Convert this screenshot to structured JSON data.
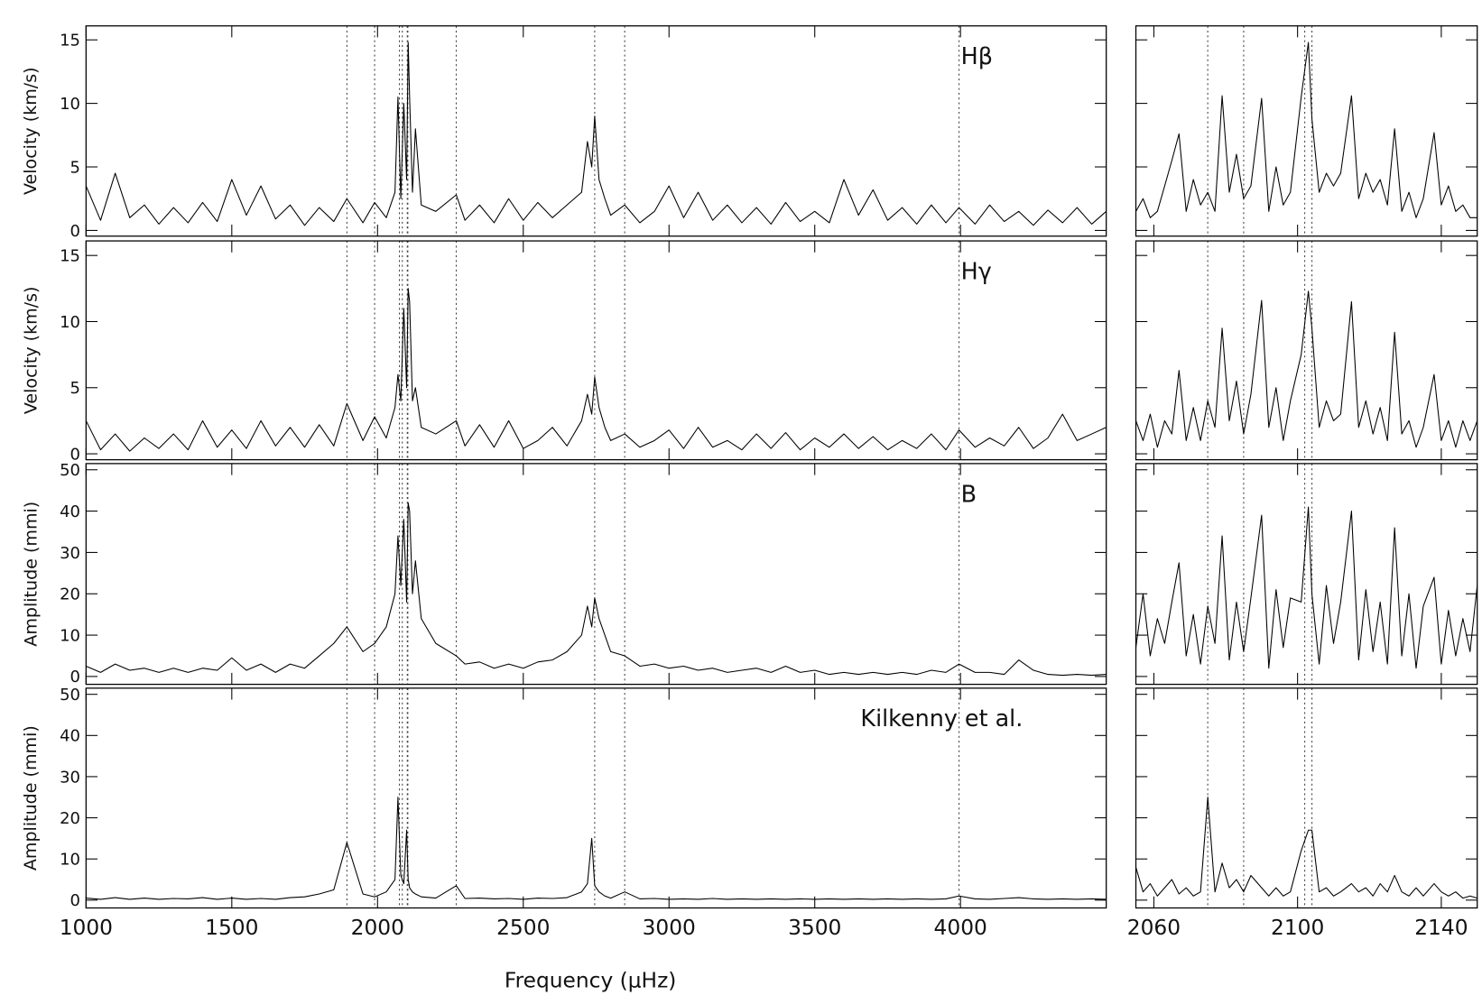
{
  "chart_data": [
    {
      "type": "line",
      "xlabel": "Frequency (μHz)",
      "color": "#000000",
      "xlim": [
        1000,
        4500
      ],
      "xticks": [
        1000,
        1500,
        2000,
        2500,
        3000,
        3500,
        4000
      ],
      "markers": [
        1895,
        1990,
        2075,
        2085,
        2102,
        2104,
        2270,
        2745,
        2848,
        3995
      ],
      "x": [
        1000,
        1050,
        1100,
        1150,
        1200,
        1250,
        1300,
        1350,
        1400,
        1450,
        1500,
        1550,
        1600,
        1650,
        1700,
        1750,
        1800,
        1850,
        1895,
        1950,
        1990,
        2030,
        2060,
        2070,
        2080,
        2090,
        2100,
        2105,
        2110,
        2120,
        2130,
        2150,
        2200,
        2270,
        2300,
        2350,
        2400,
        2450,
        2500,
        2550,
        2600,
        2650,
        2700,
        2720,
        2735,
        2745,
        2760,
        2780,
        2800,
        2848,
        2900,
        2950,
        3000,
        3050,
        3100,
        3150,
        3200,
        3250,
        3300,
        3350,
        3400,
        3450,
        3500,
        3550,
        3600,
        3650,
        3700,
        3750,
        3800,
        3850,
        3900,
        3950,
        3995,
        4050,
        4100,
        4150,
        4200,
        4250,
        4300,
        4350,
        4400,
        4450,
        4500
      ],
      "panels": [
        {
          "label": "Hβ",
          "ylabel": "Velocity (km/s)",
          "ylim": [
            -0.45,
            16.1
          ],
          "yticks": [
            0,
            5,
            10,
            15
          ],
          "values": [
            3.5,
            0.8,
            4.5,
            1.0,
            2.0,
            0.5,
            1.8,
            0.6,
            2.2,
            0.7,
            4.0,
            1.2,
            3.5,
            0.9,
            2.0,
            0.4,
            1.8,
            0.7,
            2.5,
            0.6,
            2.2,
            1.0,
            3.0,
            10.5,
            2.5,
            10.0,
            4.0,
            14.8,
            10.5,
            3.0,
            8.0,
            2.0,
            1.5,
            2.8,
            0.8,
            2.0,
            0.6,
            2.5,
            0.8,
            2.2,
            1.0,
            2.0,
            3.0,
            7.0,
            5.0,
            9.0,
            4.0,
            2.5,
            1.2,
            2.0,
            0.6,
            1.5,
            3.5,
            1.0,
            3.0,
            0.8,
            2.0,
            0.6,
            1.8,
            0.5,
            2.2,
            0.7,
            1.5,
            0.6,
            4.0,
            1.2,
            3.2,
            0.8,
            1.8,
            0.5,
            2.0,
            0.6,
            1.8,
            0.5,
            2.0,
            0.7,
            1.5,
            0.4,
            1.6,
            0.6,
            1.8,
            0.5,
            1.5
          ]
        },
        {
          "label": "Hγ",
          "ylabel": "Velocity (km/s)",
          "ylim": [
            -0.45,
            16.1
          ],
          "yticks": [
            0,
            5,
            10,
            15
          ],
          "values": [
            2.5,
            0.3,
            1.5,
            0.2,
            1.2,
            0.4,
            1.5,
            0.3,
            2.5,
            0.5,
            1.8,
            0.4,
            2.5,
            0.6,
            2.0,
            0.5,
            2.2,
            0.6,
            3.8,
            1.0,
            2.8,
            1.2,
            3.5,
            6.0,
            4.0,
            11.0,
            5.0,
            12.5,
            11.5,
            4.0,
            5.0,
            2.0,
            1.5,
            2.5,
            0.6,
            2.2,
            0.5,
            2.5,
            0.4,
            1.0,
            2.0,
            0.6,
            2.5,
            4.5,
            3.0,
            5.8,
            3.5,
            2.0,
            1.0,
            1.5,
            0.5,
            1.0,
            1.8,
            0.4,
            2.0,
            0.5,
            1.0,
            0.3,
            1.5,
            0.4,
            1.6,
            0.3,
            1.2,
            0.5,
            1.5,
            0.4,
            1.3,
            0.3,
            1.0,
            0.4,
            1.5,
            0.3,
            1.8,
            0.5,
            1.2,
            0.6,
            2.0,
            0.4,
            1.2,
            3.0,
            1.0,
            1.5,
            2.0
          ]
        },
        {
          "label": "B",
          "ylabel": "Amplitude (mmi)",
          "ylim": [
            -1.9,
            51.5
          ],
          "yticks": [
            0,
            10,
            20,
            30,
            40,
            50
          ],
          "values": [
            2.5,
            1.0,
            3.0,
            1.5,
            2.0,
            1.0,
            2.0,
            1.0,
            2.0,
            1.5,
            4.5,
            1.5,
            3.0,
            1.0,
            3.0,
            2.0,
            5.0,
            8.0,
            12.0,
            6.0,
            8.0,
            12.0,
            20.0,
            34.0,
            22.0,
            38.0,
            18.0,
            42.0,
            40.0,
            20.0,
            28.0,
            14.0,
            8.0,
            5.0,
            3.0,
            3.5,
            2.0,
            3.0,
            2.0,
            3.5,
            4.0,
            6.0,
            10.0,
            17.0,
            12.0,
            19.0,
            14.0,
            10.0,
            6.0,
            5.0,
            2.5,
            3.0,
            2.0,
            2.5,
            1.5,
            2.0,
            1.0,
            1.5,
            2.0,
            1.0,
            2.5,
            1.0,
            1.5,
            0.5,
            1.0,
            0.5,
            1.0,
            0.5,
            1.0,
            0.5,
            1.5,
            1.0,
            3.0,
            1.0,
            1.0,
            0.5,
            4.0,
            1.5,
            0.5,
            0.3,
            0.5,
            0.3,
            0.5
          ]
        },
        {
          "label": "Kilkenny et al.",
          "ylabel": "Amplitude (mmi)",
          "ylim": [
            -1.9,
            51.5
          ],
          "yticks": [
            0,
            10,
            20,
            30,
            40,
            50
          ],
          "values": [
            0.5,
            0.2,
            0.6,
            0.2,
            0.5,
            0.2,
            0.4,
            0.3,
            0.6,
            0.2,
            0.5,
            0.2,
            0.4,
            0.2,
            0.6,
            0.8,
            1.5,
            2.5,
            14.0,
            1.5,
            0.8,
            2.0,
            5.0,
            25.0,
            6.0,
            4.0,
            17.0,
            5.0,
            3.0,
            2.0,
            1.5,
            0.8,
            0.5,
            3.5,
            0.4,
            0.5,
            0.3,
            0.4,
            0.2,
            0.5,
            0.4,
            0.6,
            2.0,
            4.0,
            15.0,
            3.5,
            2.0,
            1.0,
            0.5,
            2.0,
            0.3,
            0.4,
            0.2,
            0.3,
            0.2,
            0.4,
            0.2,
            0.3,
            0.2,
            0.3,
            0.2,
            0.3,
            0.2,
            0.3,
            0.2,
            0.3,
            0.2,
            0.3,
            0.2,
            0.3,
            0.2,
            0.3,
            1.0,
            0.3,
            0.2,
            0.4,
            0.6,
            0.3,
            0.2,
            0.3,
            0.2,
            0.3,
            0.2
          ]
        }
      ]
    },
    {
      "type": "line",
      "color": "#000000",
      "xlim": [
        2055,
        2150
      ],
      "xticks": [
        2060,
        2100,
        2140
      ],
      "markers": [
        2075,
        2085,
        2102,
        2104
      ],
      "x": [
        2055,
        2057,
        2059,
        2061,
        2063,
        2065,
        2067,
        2069,
        2071,
        2073,
        2075,
        2077,
        2079,
        2081,
        2083,
        2085,
        2087,
        2090,
        2092,
        2094,
        2096,
        2098,
        2101,
        2103,
        2104,
        2106,
        2108,
        2110,
        2112,
        2115,
        2117,
        2119,
        2121,
        2123,
        2125,
        2127,
        2129,
        2131,
        2133,
        2135,
        2138,
        2140,
        2142,
        2144,
        2146,
        2148,
        2150
      ],
      "panels": [
        {
          "ylim": [
            -0.45,
            16.1
          ],
          "yticks": [
            0,
            5,
            10,
            15
          ],
          "values": [
            1.5,
            2.5,
            1.0,
            1.5,
            3.5,
            5.5,
            7.6,
            1.5,
            4.0,
            2.0,
            3.0,
            1.5,
            10.6,
            3.0,
            6.0,
            2.5,
            3.5,
            10.4,
            1.5,
            5.0,
            2.0,
            3.0,
            10.5,
            14.8,
            8.8,
            3.0,
            4.5,
            3.5,
            4.5,
            10.6,
            2.5,
            4.5,
            3.0,
            4.0,
            2.0,
            8.0,
            1.5,
            3.0,
            1.0,
            2.5,
            7.7,
            2.0,
            3.5,
            1.5,
            2.0,
            1.0,
            1.0
          ]
        },
        {
          "ylim": [
            -0.45,
            16.1
          ],
          "yticks": [
            0,
            5,
            10,
            15
          ],
          "values": [
            2.5,
            1.0,
            3.0,
            0.5,
            2.5,
            1.5,
            6.3,
            1.0,
            3.5,
            1.0,
            4.0,
            2.0,
            9.5,
            2.5,
            5.5,
            1.5,
            4.5,
            11.6,
            2.0,
            5.0,
            1.0,
            4.0,
            7.5,
            12.3,
            9.5,
            2.0,
            4.0,
            2.5,
            3.0,
            11.5,
            2.0,
            4.0,
            1.5,
            3.5,
            1.0,
            9.2,
            1.5,
            2.5,
            0.5,
            2.0,
            6.0,
            1.0,
            2.5,
            0.5,
            2.5,
            1.0,
            2.5
          ]
        },
        {
          "ylim": [
            -1.9,
            51.5
          ],
          "yticks": [
            0,
            10,
            20,
            30,
            40,
            50
          ],
          "values": [
            7.0,
            20.0,
            5.0,
            14.0,
            8.0,
            18.0,
            27.5,
            5.0,
            15.0,
            3.0,
            17.0,
            8.0,
            34.0,
            4.0,
            18.0,
            6.0,
            19.0,
            39.0,
            2.0,
            21.0,
            7.0,
            19.0,
            18.0,
            41.0,
            20.0,
            3.0,
            22.0,
            8.0,
            18.0,
            40.0,
            4.0,
            21.0,
            6.0,
            18.0,
            3.0,
            36.0,
            5.0,
            20.0,
            2.0,
            17.0,
            24.0,
            3.0,
            16.0,
            5.0,
            14.0,
            6.0,
            22.0
          ]
        },
        {
          "ylim": [
            -1.9,
            51.5
          ],
          "yticks": [
            0,
            10,
            20,
            30,
            40,
            50
          ],
          "values": [
            8.0,
            2.0,
            4.0,
            1.0,
            3.0,
            5.0,
            1.5,
            3.0,
            1.0,
            2.0,
            25.0,
            2.0,
            9.0,
            3.0,
            5.0,
            2.0,
            6.0,
            3.0,
            1.0,
            3.0,
            1.0,
            2.0,
            12.0,
            17.0,
            17.0,
            2.0,
            3.0,
            1.0,
            2.0,
            4.0,
            2.0,
            3.0,
            1.0,
            4.0,
            2.0,
            6.0,
            2.0,
            1.0,
            3.0,
            1.0,
            4.0,
            2.0,
            1.0,
            2.0,
            0.5,
            1.0,
            0.5
          ]
        }
      ]
    }
  ]
}
